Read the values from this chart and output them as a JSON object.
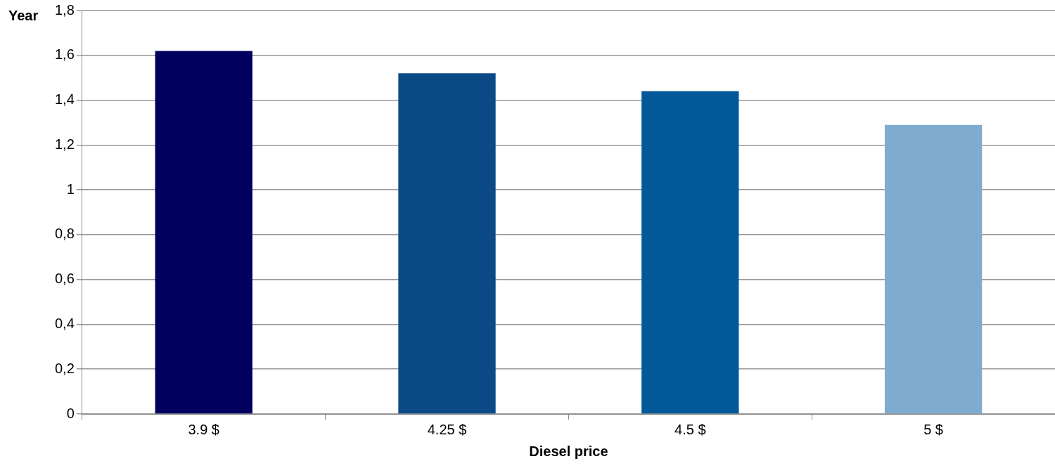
{
  "chart_data": {
    "type": "bar",
    "xlabel": "Diesel price",
    "ylabel": "Year",
    "categories": [
      "3.9 $",
      "4.25 $",
      "4.5 $",
      "5 $"
    ],
    "values": [
      1.62,
      1.52,
      1.44,
      1.29
    ],
    "colors": [
      "#02005f",
      "#0b4a87",
      "#02599a",
      "#7facce"
    ],
    "ylim": [
      0,
      1.8
    ],
    "yticks": [
      0,
      {
        "value": 0.2,
        "label": "0,2"
      },
      {
        "value": 0.4,
        "label": "0,4"
      },
      {
        "value": 0.6,
        "label": "0,6"
      },
      {
        "value": 0.8,
        "label": "0,8"
      },
      1,
      {
        "value": 1.2,
        "label": "1,2"
      },
      {
        "value": 1.4,
        "label": "1,4"
      },
      {
        "value": 1.6,
        "label": "1,6"
      },
      {
        "value": 1.8,
        "label": "1,8"
      }
    ],
    "grid": "y",
    "legend": false
  }
}
